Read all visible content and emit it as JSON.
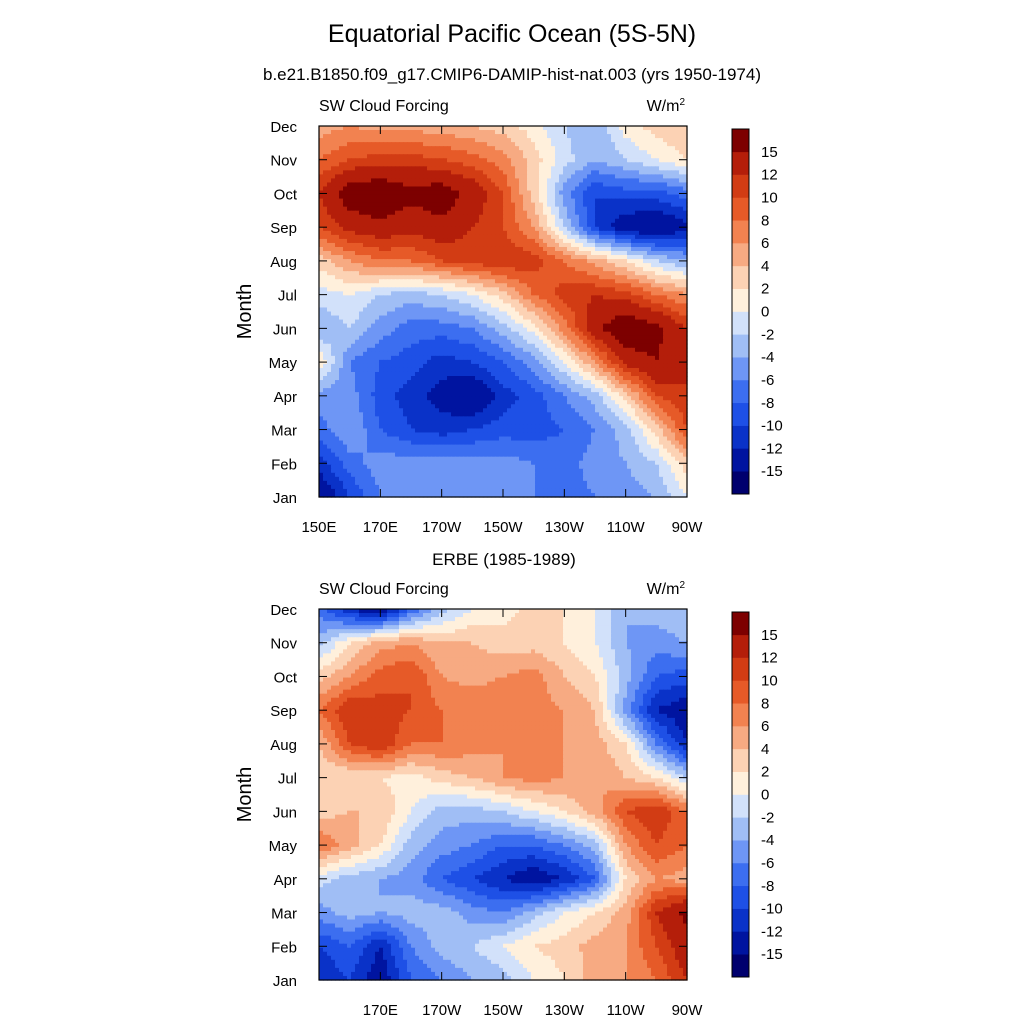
{
  "page": {
    "title": "Equatorial Pacific Ocean (5S-5N)",
    "subtitle": "b.e21.B1850.f09_g17.CMIP6-DAMIP-hist-nat.003 (yrs 1950-1974)"
  },
  "colorbar": {
    "levels": [
      -15,
      -12,
      -10,
      -8,
      -6,
      -4,
      -2,
      0,
      2,
      4,
      6,
      8,
      10,
      12,
      15
    ],
    "labels": [
      "15",
      "12",
      "10",
      "8",
      "6",
      "4",
      "2",
      "0",
      "-2",
      "-4",
      "-6",
      "-8",
      "-10",
      "-12",
      "-15"
    ],
    "colors": [
      "#00006e",
      "#0014a0",
      "#0a32c8",
      "#1e50e6",
      "#3c6ef0",
      "#6e96f5",
      "#a0bef5",
      "#d2e1fa",
      "#fff0dc",
      "#fcd2b4",
      "#f7aa82",
      "#f28250",
      "#e65a28",
      "#d23c14",
      "#b41e0a",
      "#7d0000"
    ]
  },
  "chart_data": [
    {
      "type": "heatmap",
      "title": "b.e21.B1850.f09_g17.CMIP6-DAMIP-hist-nat.003 (yrs 1950-1974)",
      "left_label": "SW Cloud Forcing",
      "units_label": "W/m",
      "units_superscript": "2",
      "xlabel": "",
      "ylabel": "Month",
      "x_range": [
        150,
        270
      ],
      "x_ticks": [
        150,
        170,
        190,
        210,
        230,
        250,
        270
      ],
      "x_tick_labels": [
        "150E",
        "170E",
        "170W",
        "150W",
        "130W",
        "110W",
        "90W"
      ],
      "y_tick_labels": [
        "Jan",
        "Feb",
        "Mar",
        "Apr",
        "May",
        "Jun",
        "Jul",
        "Aug",
        "Sep",
        "Oct",
        "Nov",
        "Dec"
      ],
      "x": [
        150,
        160,
        170,
        180,
        190,
        200,
        210,
        220,
        230,
        240,
        250,
        260,
        270
      ],
      "values": [
        [
          -15,
          -10,
          -6,
          -5,
          -5,
          -5,
          -5,
          -6,
          -7,
          -6,
          -5,
          -4,
          0
        ],
        [
          -11,
          -7,
          -5,
          -5,
          -5,
          -5,
          -5,
          -6,
          -7,
          -5,
          -4,
          -2,
          3
        ],
        [
          -7,
          -4,
          -8,
          -10,
          -11,
          -10,
          -9,
          -9,
          -8,
          -6,
          -3,
          3,
          10
        ],
        [
          -5,
          -5,
          -9,
          -11,
          -13,
          -15,
          -11,
          -9,
          -6,
          -3,
          3,
          10,
          12
        ],
        [
          2,
          -6,
          -8,
          -9,
          -11,
          -10,
          -8,
          -5,
          0,
          6,
          13,
          15,
          12
        ],
        [
          -4,
          -2,
          -5,
          -7,
          -7,
          -6,
          -3,
          1,
          7,
          14,
          18,
          16,
          12
        ],
        [
          -1,
          0,
          -2,
          -3,
          -2,
          0,
          3,
          8,
          11,
          12,
          11,
          8,
          6
        ],
        [
          3,
          6,
          8,
          8,
          10,
          11,
          12,
          11,
          8,
          5,
          2,
          -2,
          -4
        ],
        [
          10,
          13,
          14,
          13,
          14,
          12,
          10,
          6,
          -2,
          -10,
          -14,
          -15,
          -13
        ],
        [
          12,
          17,
          18,
          16,
          17,
          14,
          10,
          3,
          -5,
          -10,
          -9,
          -9,
          -7
        ],
        [
          8,
          10,
          11,
          11,
          10,
          9,
          7,
          3,
          -1,
          -4,
          -2,
          0,
          2
        ],
        [
          5,
          6,
          5,
          5,
          5,
          4,
          3,
          1,
          -2,
          -4,
          1,
          3,
          4
        ]
      ]
    },
    {
      "type": "heatmap",
      "title": "ERBE (1985-1989)",
      "left_label": "SW Cloud Forcing",
      "units_label": "W/m",
      "units_superscript": "2",
      "xlabel": "",
      "ylabel": "Month",
      "x_range": [
        150,
        270
      ],
      "x_ticks": [
        170,
        190,
        210,
        230,
        250,
        270
      ],
      "x_tick_labels": [
        "170E",
        "170W",
        "150W",
        "130W",
        "110W",
        "90W"
      ],
      "y_tick_labels": [
        "Jan",
        "Feb",
        "Mar",
        "Apr",
        "May",
        "Jun",
        "Jul",
        "Aug",
        "Sep",
        "Oct",
        "Nov",
        "Dec"
      ],
      "x": [
        150,
        160,
        170,
        180,
        190,
        200,
        210,
        220,
        230,
        240,
        250,
        260,
        270
      ],
      "values": [
        [
          -12,
          -10,
          -14,
          -8,
          -6,
          -4,
          -3,
          0,
          2,
          5,
          6,
          8,
          12
        ],
        [
          -10,
          -8,
          -12,
          -6,
          -3,
          -2,
          0,
          2,
          3,
          5,
          6,
          10,
          14
        ],
        [
          -5,
          -3,
          -4,
          -3,
          -3,
          -5,
          -6,
          -3,
          0,
          2,
          5,
          12,
          16
        ],
        [
          -1,
          -3,
          -4,
          -5,
          -8,
          -10,
          -12,
          -14,
          -12,
          -8,
          2,
          6,
          5
        ],
        [
          8,
          5,
          2,
          -3,
          -5,
          -6,
          -8,
          -8,
          -6,
          -3,
          6,
          10,
          8
        ],
        [
          3,
          4,
          4,
          0,
          -3,
          -3,
          -2,
          0,
          2,
          5,
          10,
          12,
          8
        ],
        [
          2,
          2,
          2,
          1,
          3,
          4,
          6,
          7,
          6,
          6,
          4,
          2,
          -2
        ],
        [
          4,
          10,
          12,
          8,
          8,
          7,
          6,
          7,
          6,
          5,
          2,
          -6,
          -12
        ],
        [
          8,
          12,
          11,
          10,
          8,
          8,
          8,
          7,
          6,
          4,
          -5,
          -12,
          -14
        ],
        [
          3,
          6,
          9,
          10,
          6,
          5,
          6,
          7,
          4,
          2,
          -3,
          -8,
          -9
        ],
        [
          -3,
          2,
          5,
          6,
          4,
          4,
          3,
          3,
          2,
          0,
          -4,
          -5,
          -4
        ],
        [
          -7,
          -12,
          -15,
          -8,
          -3,
          0,
          1,
          3,
          2,
          0,
          -4,
          -3,
          -2
        ]
      ]
    }
  ]
}
